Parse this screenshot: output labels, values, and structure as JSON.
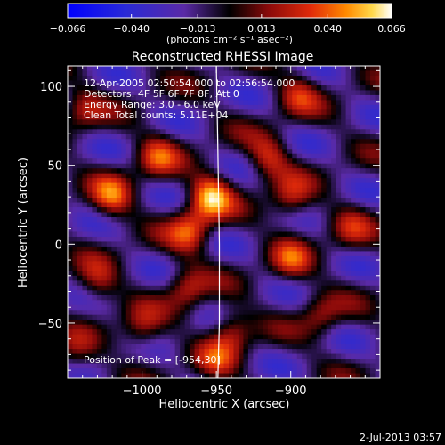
{
  "chart_data": {
    "type": "heatmap",
    "title": "Reconstructed RHESSI Image",
    "xlabel": "Heliocentric X (arcsec)",
    "ylabel": "Heliocentric Y (arcsec)",
    "xlim": [
      -1050,
      -840
    ],
    "ylim": [
      -85,
      113
    ],
    "xticks": [
      -1000,
      -950,
      -900
    ],
    "yticks": [
      -50,
      0,
      50,
      100
    ],
    "xtick_labels": [
      "−1000",
      "−950",
      "−900"
    ],
    "ytick_labels": [
      "−50",
      "0",
      "50",
      "100"
    ],
    "colorbar": {
      "range": [
        -0.066,
        0.066
      ],
      "ticks": [
        -0.066,
        -0.04,
        -0.013,
        0.013,
        0.04,
        0.066
      ],
      "tick_labels": [
        "−0.066",
        "−0.040",
        "−0.013",
        "0.013",
        "0.040",
        "0.066"
      ],
      "unit_label": "(photons cm⁻² s⁻¹ asec⁻²)"
    },
    "annotations": [
      "12-Apr-2005 02:50:54.000 to 02:56:54.000",
      "Detectors: 4F 5F 6F 7F 8F, Att 0",
      "Energy Range: 3.0 - 6.0 keV",
      "Clean    Total counts: 5.11E+04"
    ],
    "peak_label": "Position of Peak = [-954,30]",
    "peak": {
      "x": -954,
      "y": 30
    },
    "limb_points": [
      [
        -950,
        113
      ],
      [
        -949,
        60
      ],
      [
        -948,
        0
      ],
      [
        -948,
        -50
      ],
      [
        -949,
        -85
      ]
    ],
    "sources": [
      {
        "x": -954,
        "y": 30,
        "amp": 1.0
      },
      {
        "x": -968,
        "y": 8,
        "amp": 0.72
      },
      {
        "x": -1020,
        "y": 30,
        "amp": 0.7
      },
      {
        "x": -990,
        "y": 55,
        "amp": 0.6
      },
      {
        "x": -915,
        "y": 55,
        "amp": 0.6
      },
      {
        "x": -900,
        "y": 28,
        "amp": 0.55
      },
      {
        "x": -1040,
        "y": 85,
        "amp": 0.45
      },
      {
        "x": -895,
        "y": 95,
        "amp": 0.5
      },
      {
        "x": -1030,
        "y": -25,
        "amp": 0.5
      },
      {
        "x": -970,
        "y": -28,
        "amp": 0.55
      },
      {
        "x": -900,
        "y": -10,
        "amp": 0.55
      },
      {
        "x": -1000,
        "y": -55,
        "amp": 0.5
      },
      {
        "x": -940,
        "y": -55,
        "amp": 0.6
      },
      {
        "x": -880,
        "y": -45,
        "amp": 0.45
      },
      {
        "x": -950,
        "y": -75,
        "amp": 0.45
      },
      {
        "x": -1045,
        "y": -70,
        "amp": 0.35
      },
      {
        "x": -860,
        "y": 10,
        "amp": 0.4
      }
    ]
  },
  "footer": {
    "timestamp": "2-Jul-2013 03:57"
  }
}
